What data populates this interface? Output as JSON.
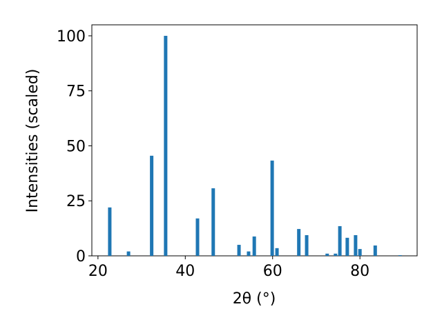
{
  "chart_data": {
    "type": "bar",
    "x": [
      22.7,
      27.0,
      32.3,
      35.5,
      42.8,
      46.4,
      52.3,
      54.5,
      55.8,
      59.9,
      61.0,
      66.0,
      67.8,
      72.5,
      74.4,
      75.4,
      77.1,
      79.0,
      80.0,
      83.5,
      89.2
    ],
    "values": [
      22,
      2,
      45.5,
      100,
      17,
      30.7,
      5,
      2,
      8.8,
      43.3,
      3.5,
      12.2,
      9.4,
      1,
      1,
      13.5,
      8.2,
      9.4,
      3.1,
      4.7,
      0.3
    ],
    "color": "#1f77b4",
    "xlabel": "2θ (°)",
    "ylabel": "Intensities (scaled)",
    "xlim": [
      18.6,
      93.1
    ],
    "xticks": [
      20,
      40,
      60,
      80
    ],
    "ylim": [
      0,
      105
    ],
    "yticks": [
      0,
      25,
      50,
      75,
      100
    ],
    "grid": false
  }
}
